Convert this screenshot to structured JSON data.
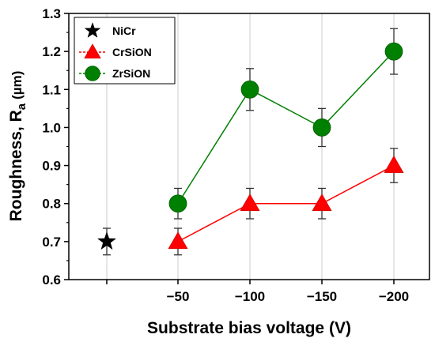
{
  "chart_data": {
    "type": "scatter",
    "title": "",
    "xlabel": "Substrate bias voltage (V)",
    "ylabel_main": "Roughness, R",
    "ylabel_sub": "a",
    "ylabel_unit": "(µm)",
    "categories": [
      "",
      "−50",
      "−100",
      "−150",
      "−200"
    ],
    "ylim": [
      0.6,
      1.3
    ],
    "yticks": [
      "0.6",
      "0.7",
      "0.8",
      "0.9",
      "1.0",
      "1.1",
      "1.2",
      "1.3"
    ],
    "grid": "vertical",
    "legend_position": "top-left",
    "series": [
      {
        "name": "NiCr",
        "marker": "star",
        "color": "#000000",
        "line": false,
        "points": [
          {
            "x": 0,
            "y": 0.7,
            "err": 0.035
          }
        ]
      },
      {
        "name": "CrSiON",
        "marker": "triangle",
        "color": "#ff0000",
        "line": true,
        "points": [
          {
            "x": 1,
            "y": 0.7,
            "err": 0.035
          },
          {
            "x": 2,
            "y": 0.8,
            "err": 0.04
          },
          {
            "x": 3,
            "y": 0.8,
            "err": 0.04
          },
          {
            "x": 4,
            "y": 0.9,
            "err": 0.045
          }
        ]
      },
      {
        "name": "ZrSiON",
        "marker": "circle",
        "color": "#008000",
        "line": true,
        "points": [
          {
            "x": 1,
            "y": 0.8,
            "err": 0.04
          },
          {
            "x": 2,
            "y": 1.1,
            "err": 0.055
          },
          {
            "x": 3,
            "y": 1.0,
            "err": 0.05
          },
          {
            "x": 4,
            "y": 1.2,
            "err": 0.06
          }
        ]
      }
    ]
  }
}
